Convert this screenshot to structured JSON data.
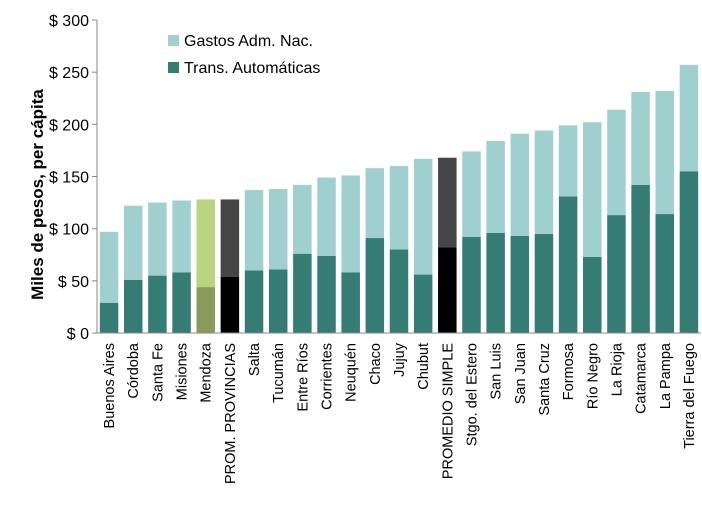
{
  "chart_data": {
    "type": "bar",
    "stacked": true,
    "title": "",
    "xlabel": "",
    "ylabel": "Miles de pesos, per cápita",
    "ylim": [
      0,
      300
    ],
    "yticks": [
      0,
      50,
      100,
      150,
      200,
      250,
      300
    ],
    "ytick_labels": [
      "$ 0",
      "$ 50",
      "$ 100",
      "$ 150",
      "$ 200",
      "$ 250",
      "$ 300"
    ],
    "legend_position": "top-left",
    "categories": [
      "Buenos Aires",
      "Córdoba",
      "Santa Fe",
      "Misiones",
      "Mendoza",
      "PROM. PROVINCIAS",
      "Salta",
      "Tucumán",
      "Entre Ríos",
      "Corrientes",
      "Neuquén",
      "Chaco",
      "Jujuy",
      "Chubut",
      "PROMEDIO SIMPLE",
      "Stgo. del Estero",
      "San Luis",
      "San Juan",
      "Santa Cruz",
      "Formosa",
      "Río Negro",
      "La Rioja",
      "Catamarca",
      "La Pampa",
      "Tierra del Fuego"
    ],
    "series": [
      {
        "name": "Trans. Automáticas",
        "color": "#357d74",
        "values": [
          29,
          51,
          55,
          58,
          44,
          54,
          60,
          61,
          76,
          74,
          58,
          91,
          80,
          56,
          82,
          92,
          96,
          93,
          95,
          131,
          73,
          113,
          142,
          114,
          155
        ]
      },
      {
        "name": "Gastos Adm. Nac.",
        "color": "#a0cfcf",
        "values": [
          68,
          71,
          70,
          69,
          84,
          74,
          77,
          77,
          66,
          75,
          93,
          67,
          80,
          111,
          86,
          82,
          88,
          98,
          99,
          68,
          129,
          101,
          89,
          118,
          102
        ]
      }
    ],
    "highlights": {
      "Mendoza": {
        "Trans. Automáticas": "#8a9a5b",
        "Gastos Adm. Nac.": "#b8d47e"
      },
      "PROM. PROVINCIAS": {
        "Trans. Automáticas": "#000000",
        "Gastos Adm. Nac.": "#454545"
      },
      "PROMEDIO SIMPLE": {
        "Trans. Automáticas": "#000000",
        "Gastos Adm. Nac.": "#454545"
      }
    }
  }
}
